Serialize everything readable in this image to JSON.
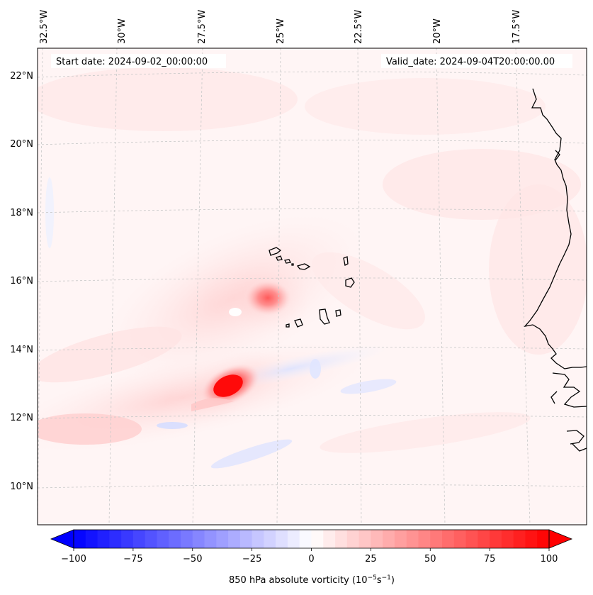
{
  "header": {
    "start_date": "Start date: 2024-09-02_00:00:00",
    "valid_date": "Valid_date: 2024-09-04T20:00:00.00"
  },
  "map": {
    "projection": "Lambert conformal",
    "top_longitude_labels": [
      "32.5°W",
      "30°W",
      "27.5°W",
      "25°W",
      "22.5°W",
      "20°W",
      "17.5°W"
    ],
    "left_latitude_labels": [
      "22°N",
      "20°N",
      "18°N",
      "16°N",
      "14°N",
      "12°N",
      "10°N"
    ],
    "gridlines": true,
    "coastline_color": "#000000",
    "features": [
      {
        "name": "Cabo Verde islands",
        "lat": 16.0,
        "lon": -24.0
      },
      {
        "name": "West African coast",
        "lat": 15.0,
        "lon": -17.0
      }
    ],
    "vorticity_maxima": [
      {
        "lat": 15.5,
        "lon": -25.3,
        "value": 75
      },
      {
        "lat": 12.9,
        "lon": -26.8,
        "value": 100
      }
    ]
  },
  "colorbar": {
    "label": "850 hPa absolute vorticity (10$^{-5}$s$^{-1}$)",
    "label_text": "850 hPa absolute vorticity (10",
    "label_sup1": "−5",
    "label_mid": "s",
    "label_sup2": "−1",
    "label_end": ")",
    "ticks": [
      "−100",
      "−75",
      "−50",
      "−25",
      "0",
      "25",
      "50",
      "75",
      "100"
    ],
    "tick_values": [
      -100,
      -75,
      -50,
      -25,
      0,
      25,
      50,
      75,
      100
    ],
    "range": [
      -100,
      100
    ],
    "levels": 40,
    "colormap": "bwr",
    "extend": "both",
    "min_color": "#0000ff",
    "mid_color": "#ffffff",
    "max_color": "#ff0000"
  }
}
